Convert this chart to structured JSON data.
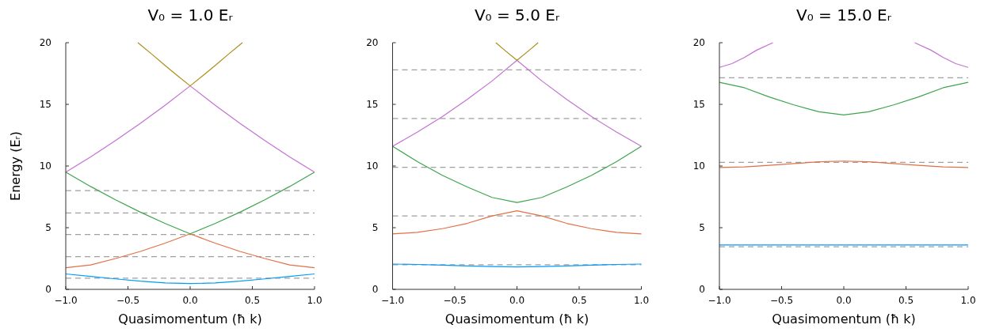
{
  "chart_data": [
    {
      "type": "line",
      "title": "V₀ = 1.0 Eᵣ",
      "xlabel": "Quasimomentum (ħ k)",
      "ylabel": "Energy (Eᵣ)",
      "x": [
        -1,
        -0.8,
        -0.6,
        -0.4,
        -0.2,
        0,
        0.2,
        0.4,
        0.6,
        0.8,
        1
      ],
      "xlim": [
        -1,
        1
      ],
      "xticks": [
        {
          "value": -1,
          "label": "−1.0"
        },
        {
          "value": -0.5,
          "label": "−0.5"
        },
        {
          "value": 0,
          "label": "0.0"
        },
        {
          "value": 0.5,
          "label": "0.5"
        },
        {
          "value": 1,
          "label": "1.0"
        }
      ],
      "ylim": [
        0,
        20
      ],
      "yticks": [
        0,
        5,
        10,
        15,
        20
      ],
      "series": [
        {
          "color": "#009af9",
          "values": [
            1.25,
            1.05,
            0.85,
            0.66,
            0.52,
            0.47,
            0.52,
            0.66,
            0.85,
            1.05,
            1.25
          ]
        },
        {
          "color": "#e26f46",
          "values": [
            1.75,
            1.98,
            2.5,
            3.08,
            3.75,
            4.5,
            3.75,
            3.08,
            2.5,
            1.98,
            1.75
          ]
        },
        {
          "color": "#3ea44e",
          "values": [
            9.5,
            8.34,
            7.26,
            6.26,
            5.34,
            4.5,
            5.34,
            6.26,
            7.26,
            8.34,
            9.5
          ]
        },
        {
          "color": "#c271d2",
          "values": [
            9.5,
            10.74,
            12.06,
            13.46,
            14.94,
            16.5,
            14.94,
            13.46,
            12.06,
            10.74,
            9.5
          ]
        },
        {
          "color": "#ac8e18",
          "x": [
            -0.42,
            -0.3,
            -0.2,
            -0.1,
            0,
            0.1,
            0.2,
            0.3,
            0.42
          ],
          "values": [
            20,
            19,
            18.14,
            17.31,
            16.5,
            17.31,
            18.14,
            19,
            20
          ]
        }
      ],
      "ref_lines": [
        {
          "axis": "y",
          "value": 0.9,
          "color": "#a0a0a0",
          "line_style": "dashed"
        },
        {
          "axis": "y",
          "value": 2.65,
          "color": "#a0a0a0",
          "line_style": "dashed"
        },
        {
          "axis": "y",
          "value": 4.45,
          "color": "#a0a0a0",
          "line_style": "dashed"
        },
        {
          "axis": "y",
          "value": 6.2,
          "color": "#a0a0a0",
          "line_style": "dashed"
        },
        {
          "axis": "y",
          "value": 8.0,
          "color": "#a0a0a0",
          "line_style": "dashed"
        }
      ]
    },
    {
      "type": "line",
      "title": "V₀ = 5.0 Eᵣ",
      "xlabel": "Quasimomentum (ħ k)",
      "x": [
        -1,
        -0.8,
        -0.6,
        -0.4,
        -0.2,
        0,
        0.2,
        0.4,
        0.6,
        0.8,
        1
      ],
      "xlim": [
        -1,
        1
      ],
      "xticks": [
        {
          "value": -1,
          "label": "−1.0"
        },
        {
          "value": -0.5,
          "label": "−0.5"
        },
        {
          "value": 0,
          "label": "0.0"
        },
        {
          "value": 0.5,
          "label": "0.5"
        },
        {
          "value": 1,
          "label": "1.0"
        }
      ],
      "ylim": [
        0,
        20
      ],
      "yticks": [
        0,
        5,
        10,
        15,
        20
      ],
      "series": [
        {
          "color": "#009af9",
          "values": [
            2.05,
            2.02,
            1.96,
            1.9,
            1.85,
            1.82,
            1.85,
            1.9,
            1.96,
            2.02,
            2.05
          ]
        },
        {
          "color": "#e26f46",
          "values": [
            4.5,
            4.62,
            4.92,
            5.35,
            5.95,
            6.37,
            5.95,
            5.35,
            4.92,
            4.62,
            4.5
          ]
        },
        {
          "color": "#3ea44e",
          "values": [
            11.6,
            10.35,
            9.25,
            8.3,
            7.45,
            7.04,
            7.45,
            8.3,
            9.25,
            10.35,
            11.6
          ]
        },
        {
          "color": "#c271d2",
          "values": [
            11.6,
            12.75,
            14,
            15.4,
            16.9,
            18.57,
            16.9,
            15.4,
            14,
            12.75,
            11.6
          ]
        },
        {
          "color": "#ac8e18",
          "x": [
            -0.17,
            -0.1,
            0,
            0.1,
            0.17
          ],
          "values": [
            20,
            19.4,
            18.57,
            19.4,
            20
          ]
        }
      ],
      "ref_lines": [
        {
          "axis": "y",
          "value": 2.0,
          "color": "#a0a0a0",
          "line_style": "dashed"
        },
        {
          "axis": "y",
          "value": 5.95,
          "color": "#a0a0a0",
          "line_style": "dashed"
        },
        {
          "axis": "y",
          "value": 9.9,
          "color": "#a0a0a0",
          "line_style": "dashed"
        },
        {
          "axis": "y",
          "value": 13.85,
          "color": "#a0a0a0",
          "line_style": "dashed"
        },
        {
          "axis": "y",
          "value": 17.8,
          "color": "#a0a0a0",
          "line_style": "dashed"
        }
      ]
    },
    {
      "type": "line",
      "title": "V₀ = 15.0 Eᵣ",
      "xlabel": "Quasimomentum (ħ k)",
      "x": [
        -1,
        -0.8,
        -0.6,
        -0.4,
        -0.2,
        0,
        0.2,
        0.4,
        0.6,
        0.8,
        1
      ],
      "xlim": [
        -1,
        1
      ],
      "xticks": [
        {
          "value": -1,
          "label": "−1.0"
        },
        {
          "value": -0.5,
          "label": "−0.5"
        },
        {
          "value": 0,
          "label": "0.0"
        },
        {
          "value": 0.5,
          "label": "0.5"
        },
        {
          "value": 1,
          "label": "1.0"
        }
      ],
      "ylim": [
        0,
        20
      ],
      "yticks": [
        0,
        5,
        10,
        15,
        20
      ],
      "series": [
        {
          "color": "#009af9",
          "values": [
            3.6,
            3.6,
            3.6,
            3.6,
            3.6,
            3.6,
            3.6,
            3.6,
            3.6,
            3.6,
            3.6
          ]
        },
        {
          "color": "#e26f46",
          "values": [
            9.88,
            9.93,
            10.05,
            10.2,
            10.34,
            10.4,
            10.34,
            10.2,
            10.05,
            9.93,
            9.88
          ]
        },
        {
          "color": "#3ea44e",
          "values": [
            16.79,
            16.35,
            15.6,
            14.95,
            14.4,
            14.14,
            14.4,
            14.95,
            15.6,
            16.35,
            16.79
          ]
        },
        {
          "color": "#c271d2",
          "x": [
            -1,
            -0.9,
            -0.8,
            -0.7,
            -0.57,
            0,
            0.57,
            0.7,
            0.8,
            0.9,
            1
          ],
          "values": [
            18,
            18.3,
            18.8,
            19.4,
            20,
            null,
            20,
            19.4,
            18.8,
            18.3,
            18
          ]
        }
      ],
      "ref_lines": [
        {
          "axis": "y",
          "value": 3.45,
          "color": "#a0a0a0",
          "line_style": "dashed"
        },
        {
          "axis": "y",
          "value": 10.3,
          "color": "#a0a0a0",
          "line_style": "dashed"
        },
        {
          "axis": "y",
          "value": 17.15,
          "color": "#a0a0a0",
          "line_style": "dashed"
        }
      ]
    }
  ]
}
